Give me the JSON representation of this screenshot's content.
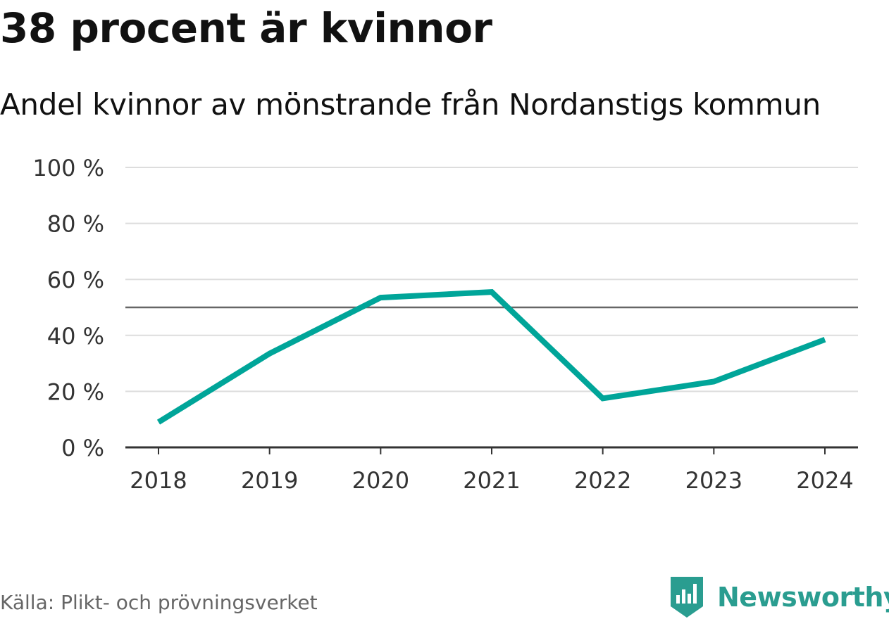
{
  "chart_data": {
    "type": "line",
    "title": "38 procent är kvinnor",
    "subtitle": "Andel kvinnor av mönstrande från Nordanstigs kommun",
    "categories": [
      "2018",
      "2019",
      "2020",
      "2021",
      "2022",
      "2023",
      "2024"
    ],
    "series": [
      {
        "name": "Andel kvinnor",
        "values": [
          9,
          33.5,
          53.5,
          55.5,
          17.5,
          23.5,
          38.5
        ],
        "color": "#00a599"
      }
    ],
    "y_ticks": [
      {
        "value": 0,
        "label": "0 %"
      },
      {
        "value": 20,
        "label": "20 %"
      },
      {
        "value": 40,
        "label": "40 %"
      },
      {
        "value": 60,
        "label": "60 %"
      },
      {
        "value": 80,
        "label": "80 %"
      },
      {
        "value": 100,
        "label": "100 %"
      }
    ],
    "ylim": [
      0,
      100
    ],
    "reference_line": 50,
    "grid": true,
    "xlabel": "",
    "ylabel": ""
  },
  "source": "Källa: Plikt- och prövningsverket",
  "brand": {
    "name": "Newsworthy",
    "icon": "newsworthy-logo-icon",
    "color": "#2a9d90"
  },
  "colors": {
    "grid": "#dddddd",
    "reference": "#666666",
    "axis": "#333333",
    "line": "#00a599"
  }
}
